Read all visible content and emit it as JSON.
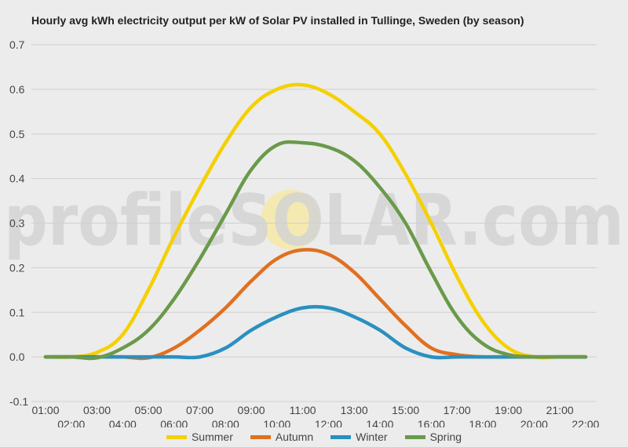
{
  "chart_data": {
    "type": "line",
    "title": "Hourly avg kWh electricity output per kW of Solar PV installed in Tullinge, Sweden (by season)",
    "xlabel": "",
    "ylabel": "",
    "x": [
      "01:00",
      "02:00",
      "03:00",
      "04:00",
      "05:00",
      "06:00",
      "07:00",
      "08:00",
      "09:00",
      "10:00",
      "11:00",
      "12:00",
      "13:00",
      "14:00",
      "15:00",
      "16:00",
      "17:00",
      "18:00",
      "19:00",
      "20:00",
      "21:00",
      "22:00"
    ],
    "ylim": [
      -0.1,
      0.7
    ],
    "yticks": [
      "-0.1",
      "0.0",
      "0.1",
      "0.2",
      "0.3",
      "0.4",
      "0.5",
      "0.6",
      "0.7"
    ],
    "grid": true,
    "legend_position": "bottom",
    "series": [
      {
        "name": "Summer",
        "color": "#f5d000",
        "values": [
          0,
          0,
          0.01,
          0.05,
          0.15,
          0.27,
          0.38,
          0.48,
          0.56,
          0.6,
          0.61,
          0.59,
          0.55,
          0.5,
          0.41,
          0.3,
          0.18,
          0.08,
          0.02,
          0,
          0,
          0
        ]
      },
      {
        "name": "Autumn",
        "color": "#e07020",
        "values": [
          0,
          0,
          0,
          0,
          -0.002,
          0.02,
          0.06,
          0.11,
          0.17,
          0.22,
          0.24,
          0.23,
          0.19,
          0.13,
          0.07,
          0.02,
          0.005,
          0,
          0,
          0,
          0,
          0
        ]
      },
      {
        "name": "Winter",
        "color": "#2a90c0",
        "values": [
          0,
          0,
          0,
          0,
          0,
          0,
          0,
          0.02,
          0.06,
          0.09,
          0.11,
          0.11,
          0.09,
          0.06,
          0.02,
          0,
          0,
          0,
          0,
          0,
          0,
          0
        ]
      },
      {
        "name": "Spring",
        "color": "#6a9a4a",
        "values": [
          0,
          0,
          -0.002,
          0.02,
          0.06,
          0.13,
          0.22,
          0.32,
          0.42,
          0.475,
          0.48,
          0.47,
          0.44,
          0.38,
          0.3,
          0.19,
          0.09,
          0.03,
          0.005,
          0,
          0,
          0
        ]
      }
    ]
  },
  "watermark": {
    "text_left": "profile",
    "text_sun": "SO",
    "text_right": "LAR.com",
    "sun_color": "#f6e9a6",
    "text_color": "#d4d4d4"
  }
}
